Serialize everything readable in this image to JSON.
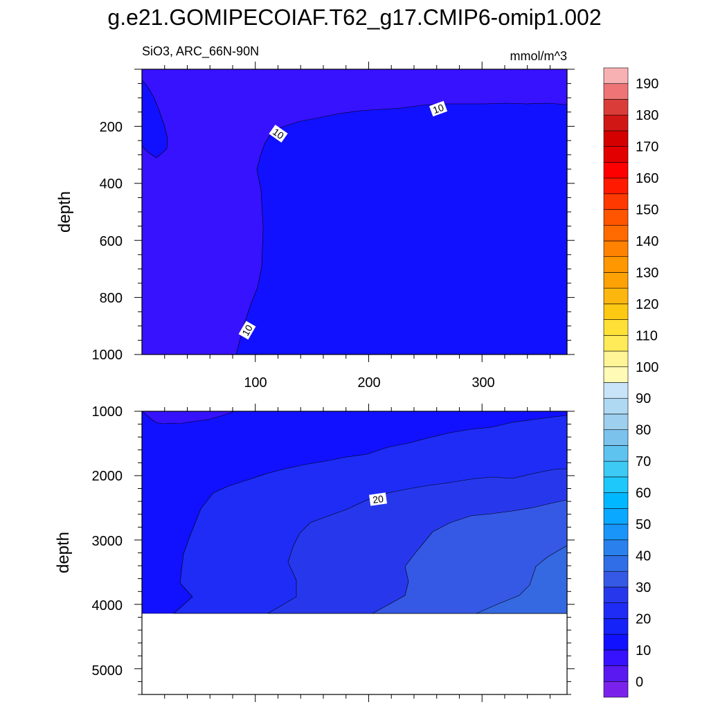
{
  "title": "g.e21.GOMIPECOIAF.T62_g17.CMIP6-omip1.002",
  "left_subtitle": "SiO3, ARC_66N-90N",
  "right_subtitle": "mmol/m^3",
  "colors": {
    "below_10": "#3712ff",
    "range_10_20": "#1111ff",
    "range_20_25": "#1e2cf5",
    "range_25_30": "#2738ec",
    "range_30_35": "#3559e4",
    "range_35_40": "#3569e1",
    "no_data": "#ffffff"
  },
  "chart_data": [
    {
      "type": "contour",
      "panel": "upper",
      "ylabel": "depth",
      "xlim": [
        0,
        375
      ],
      "ylim": [
        1000,
        0
      ],
      "xticks": [
        "100",
        "200",
        "300"
      ],
      "yticks": [
        "200",
        "400",
        "600",
        "800",
        "1000"
      ],
      "contour_labels": [
        "10",
        "10",
        "10"
      ],
      "regions": [
        {
          "range": "5-10",
          "area": "western column (x < ~100) and surface layer above ~150 m"
        },
        {
          "range": "10-15",
          "area": "below ~150 m east of x ~ 100"
        }
      ]
    },
    {
      "type": "contour",
      "panel": "lower",
      "ylabel": "depth",
      "xlim": [
        0,
        375
      ],
      "ylim": [
        5400,
        1000
      ],
      "yticks": [
        "1000",
        "2000",
        "3000",
        "4000",
        "5000"
      ],
      "contour_labels": [
        "20"
      ],
      "bottom_depth": 4120,
      "regions": [
        {
          "range": "5-10",
          "area": "thin layer near 1000 m at x < 80"
        },
        {
          "range": "10-20",
          "area": "upper and western part"
        },
        {
          "range": "20-25",
          "area": "middle band"
        },
        {
          "range": "25-30",
          "area": "deep central band"
        },
        {
          "range": "30-35",
          "area": "deep eastern band"
        },
        {
          "range": "35-40",
          "area": "deepest eastern corner"
        }
      ]
    }
  ],
  "colorbar": {
    "labels": [
      "0",
      "10",
      "20",
      "30",
      "40",
      "50",
      "60",
      "70",
      "80",
      "90",
      "100",
      "110",
      "120",
      "130",
      "140",
      "150",
      "160",
      "170",
      "180",
      "190"
    ],
    "colors": [
      "#7a22ec",
      "#5919f0",
      "#3712ff",
      "#1111ff",
      "#1522f8",
      "#1e2cf5",
      "#2738ec",
      "#3559e4",
      "#2f6ee6",
      "#2a80ec",
      "#1995fa",
      "#0aa8ff",
      "#00b8ff",
      "#1ec8fb",
      "#3dcaf5",
      "#5fc3ef",
      "#7bc2ed",
      "#9ecfee",
      "#afd8f3",
      "#c9e4f8",
      "#fffab6",
      "#fff496",
      "#ffea58",
      "#fee036",
      "#fdc913",
      "#fbb70d",
      "#fda105",
      "#ff9700",
      "#ff8200",
      "#fe6a00",
      "#ff5400",
      "#ff3900",
      "#ff1a00",
      "#ff0000",
      "#e30000",
      "#d40000",
      "#d11716",
      "#da3c3a",
      "#ee7476",
      "#f8b1b3"
    ]
  }
}
